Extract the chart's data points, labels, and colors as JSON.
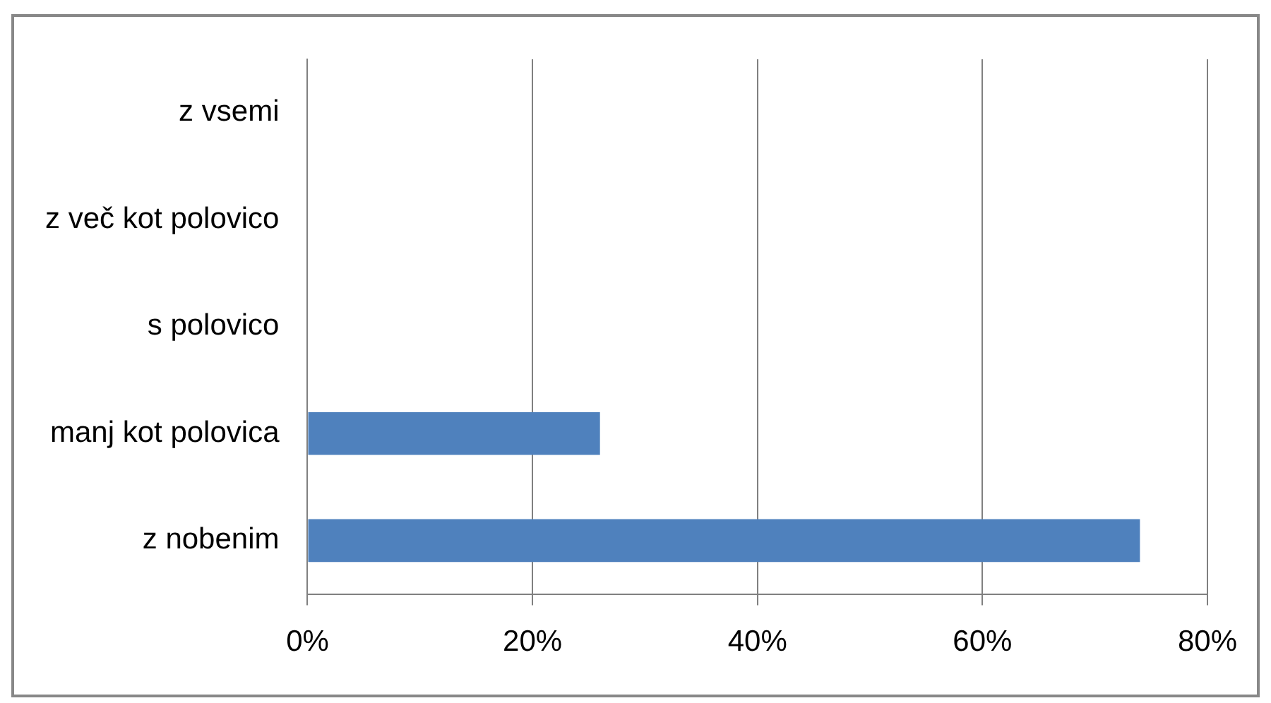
{
  "chart_data": {
    "type": "bar",
    "orientation": "horizontal",
    "categories": [
      "z vsemi",
      "z več kot polovico",
      "s polovico",
      "manj kot polovica",
      "z nobenim"
    ],
    "values": [
      0,
      0,
      0,
      26,
      74
    ],
    "color": "#4f81bd",
    "xlim": [
      0,
      80
    ],
    "xticks": [
      {
        "value": 0,
        "label": "0%"
      },
      {
        "value": 20,
        "label": "20%"
      },
      {
        "value": 40,
        "label": "40%"
      },
      {
        "value": 60,
        "label": "60%"
      },
      {
        "value": 80,
        "label": "80%"
      }
    ],
    "grid": "x",
    "legend": false
  }
}
